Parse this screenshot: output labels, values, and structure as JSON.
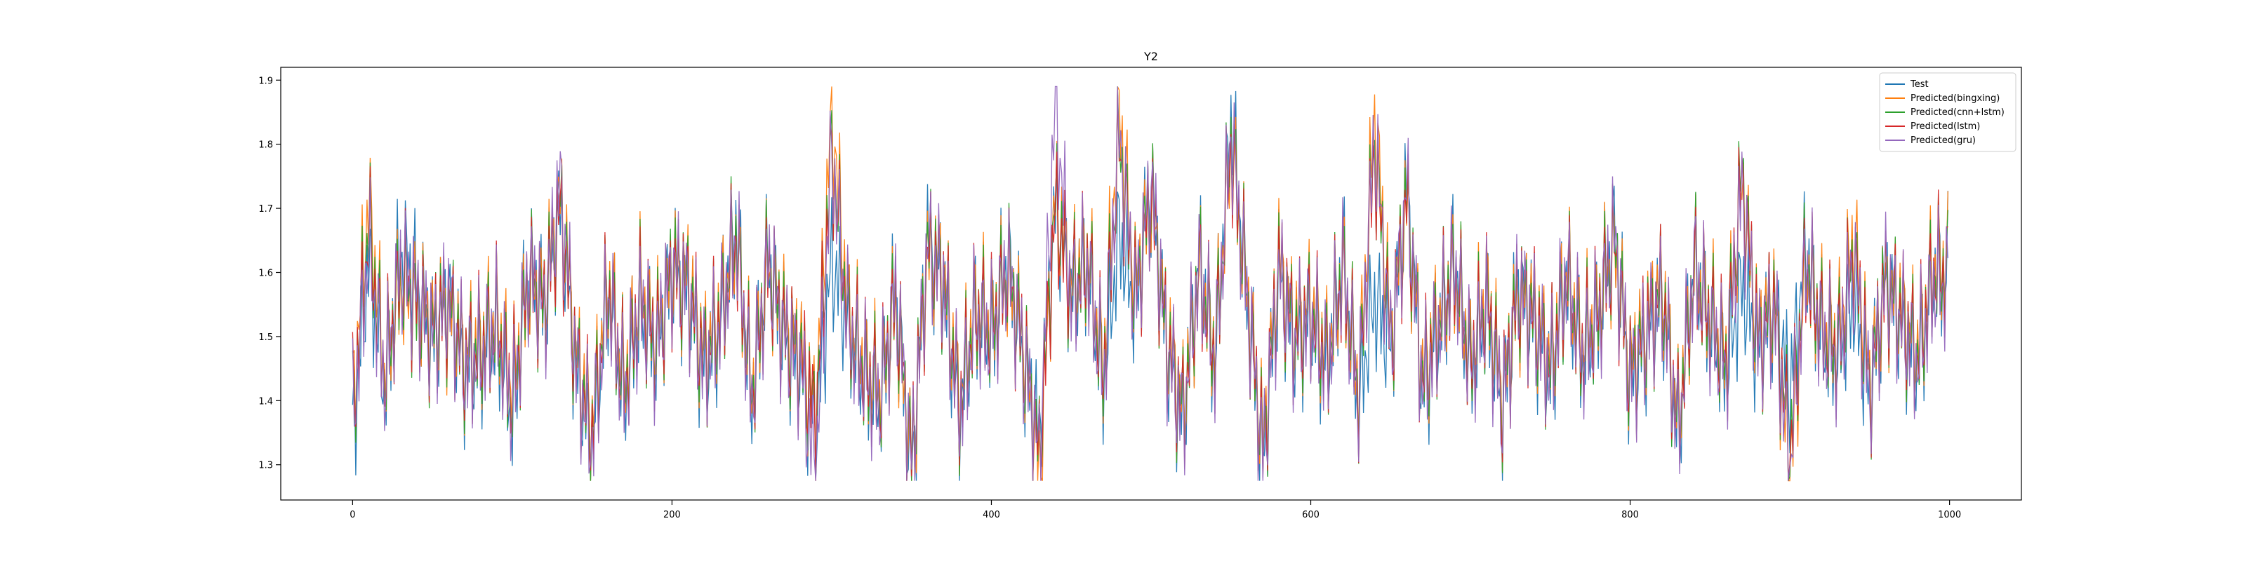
{
  "chart_data": {
    "type": "line",
    "title": "Y2",
    "xlabel": "",
    "ylabel": "",
    "xlim": [
      -45,
      1045
    ],
    "ylim": [
      1.245,
      1.92
    ],
    "x_ticks": [
      0,
      200,
      400,
      600,
      800,
      1000
    ],
    "y_ticks": [
      1.3,
      1.4,
      1.5,
      1.6,
      1.7,
      1.8,
      1.9
    ],
    "grid": false,
    "legend_position": "top-right",
    "n_points": 1000,
    "x_start": 0,
    "x_step": 1,
    "series": [
      {
        "name": "Test",
        "color": "#1f77b4",
        "values": [
          1.35,
          1.62,
          1.42,
          1.63,
          1.58,
          1.5,
          1.56,
          1.45,
          1.47,
          1.51,
          1.38,
          1.6,
          1.55,
          1.7,
          1.45,
          1.33,
          1.58,
          1.41,
          1.55,
          1.48,
          1.6,
          1.57,
          1.45,
          1.52,
          1.67,
          1.4,
          1.62,
          1.5,
          1.46,
          1.36,
          1.62,
          1.52,
          1.44,
          1.4,
          1.57,
          1.28,
          1.65,
          1.58,
          1.38,
          1.54,
          1.5,
          1.62,
          1.47,
          1.34,
          1.7,
          1.57,
          1.62,
          1.43,
          1.66,
          1.55,
          1.73,
          1.48,
          1.37,
          1.62,
          1.46,
          1.84,
          1.57,
          1.31,
          1.6,
          1.49,
          1.53,
          1.45,
          1.62,
          1.4,
          1.56,
          1.48,
          1.73,
          1.42,
          1.51,
          1.62,
          1.45,
          1.55,
          1.39,
          1.58,
          1.52,
          1.44,
          1.59,
          1.47,
          1.53,
          1.66,
          1.43,
          1.5,
          1.57,
          1.35,
          1.61,
          1.52,
          1.45,
          1.58,
          1.48,
          1.55,
          1.42,
          1.63,
          1.5,
          1.47,
          1.56,
          1.41,
          1.59,
          1.52,
          1.46,
          1.6
        ],
        "x_start": 0,
        "x_step": 10
      },
      {
        "name": "Predicted(bingxing)",
        "color": "#ff7f0e",
        "values": [
          1.4,
          1.71,
          1.45,
          1.58,
          1.55,
          1.52,
          1.54,
          1.47,
          1.49,
          1.53,
          1.42,
          1.58,
          1.56,
          1.72,
          1.47,
          1.36,
          1.59,
          1.43,
          1.57,
          1.5,
          1.6,
          1.59,
          1.47,
          1.54,
          1.65,
          1.42,
          1.61,
          1.52,
          1.48,
          1.38,
          1.86,
          1.54,
          1.46,
          1.42,
          1.55,
          1.3,
          1.63,
          1.6,
          1.4,
          1.55,
          1.52,
          1.6,
          1.49,
          1.28,
          1.72,
          1.58,
          1.63,
          1.45,
          1.86,
          1.57,
          1.72,
          1.5,
          1.39,
          1.6,
          1.48,
          1.8,
          1.58,
          1.33,
          1.62,
          1.51,
          1.55,
          1.47,
          1.6,
          1.42,
          1.85,
          1.5,
          1.71,
          1.44,
          1.53,
          1.6,
          1.47,
          1.57,
          1.41,
          1.56,
          1.54,
          1.46,
          1.6,
          1.49,
          1.55,
          1.64,
          1.45,
          1.52,
          1.58,
          1.37,
          1.6,
          1.54,
          1.47,
          1.74,
          1.5,
          1.56,
          1.28,
          1.61,
          1.52,
          1.49,
          1.66,
          1.43,
          1.58,
          1.54,
          1.48,
          1.61
        ],
        "x_start": 0,
        "x_step": 10
      },
      {
        "name": "Predicted(cnn+lstm)",
        "color": "#2ca02c",
        "values": [
          1.38,
          1.68,
          1.44,
          1.59,
          1.54,
          1.51,
          1.55,
          1.46,
          1.48,
          1.52,
          1.4,
          1.59,
          1.55,
          1.71,
          1.46,
          1.35,
          1.58,
          1.42,
          1.56,
          1.49,
          1.61,
          1.58,
          1.46,
          1.53,
          1.66,
          1.41,
          1.62,
          1.51,
          1.47,
          1.37,
          1.79,
          1.53,
          1.45,
          1.41,
          1.56,
          1.31,
          1.64,
          1.59,
          1.39,
          1.54,
          1.51,
          1.61,
          1.48,
          1.32,
          1.71,
          1.57,
          1.62,
          1.44,
          1.81,
          1.56,
          1.73,
          1.49,
          1.38,
          1.61,
          1.47,
          1.81,
          1.57,
          1.32,
          1.61,
          1.5,
          1.54,
          1.46,
          1.61,
          1.41,
          1.8,
          1.49,
          1.72,
          1.43,
          1.52,
          1.61,
          1.46,
          1.56,
          1.4,
          1.57,
          1.53,
          1.45,
          1.59,
          1.48,
          1.54,
          1.65,
          1.44,
          1.51,
          1.57,
          1.36,
          1.61,
          1.53,
          1.46,
          1.76,
          1.49,
          1.55,
          1.33,
          1.62,
          1.51,
          1.48,
          1.63,
          1.42,
          1.59,
          1.53,
          1.47,
          1.6
        ],
        "x_start": 0,
        "x_step": 10
      },
      {
        "name": "Predicted(lstm)",
        "color": "#d62728",
        "values": [
          1.39,
          1.66,
          1.44,
          1.6,
          1.55,
          1.51,
          1.55,
          1.46,
          1.48,
          1.52,
          1.41,
          1.59,
          1.55,
          1.7,
          1.46,
          1.35,
          1.58,
          1.42,
          1.56,
          1.49,
          1.6,
          1.58,
          1.46,
          1.53,
          1.65,
          1.41,
          1.61,
          1.51,
          1.47,
          1.37,
          1.78,
          1.53,
          1.45,
          1.41,
          1.56,
          1.31,
          1.63,
          1.59,
          1.39,
          1.54,
          1.51,
          1.6,
          1.48,
          1.31,
          1.7,
          1.57,
          1.62,
          1.44,
          1.8,
          1.56,
          1.72,
          1.49,
          1.38,
          1.6,
          1.47,
          1.8,
          1.57,
          1.32,
          1.61,
          1.5,
          1.54,
          1.46,
          1.6,
          1.41,
          1.79,
          1.49,
          1.71,
          1.43,
          1.52,
          1.6,
          1.46,
          1.56,
          1.4,
          1.57,
          1.53,
          1.45,
          1.59,
          1.48,
          1.54,
          1.64,
          1.44,
          1.51,
          1.57,
          1.36,
          1.6,
          1.53,
          1.46,
          1.75,
          1.49,
          1.55,
          1.32,
          1.61,
          1.51,
          1.48,
          1.63,
          1.42,
          1.58,
          1.53,
          1.47,
          1.6
        ],
        "x_start": 0,
        "x_step": 10
      },
      {
        "name": "Predicted(gru)",
        "color": "#9467bd",
        "values": [
          1.37,
          1.64,
          1.43,
          1.61,
          1.56,
          1.5,
          1.56,
          1.45,
          1.47,
          1.52,
          1.39,
          1.6,
          1.54,
          1.74,
          1.45,
          1.33,
          1.57,
          1.41,
          1.55,
          1.48,
          1.61,
          1.57,
          1.45,
          1.52,
          1.66,
          1.4,
          1.62,
          1.5,
          1.46,
          1.28,
          1.79,
          1.52,
          1.44,
          1.4,
          1.57,
          1.3,
          1.64,
          1.58,
          1.38,
          1.53,
          1.5,
          1.61,
          1.47,
          1.31,
          1.87,
          1.56,
          1.61,
          1.43,
          1.82,
          1.55,
          1.74,
          1.48,
          1.37,
          1.61,
          1.46,
          1.82,
          1.56,
          1.31,
          1.6,
          1.49,
          1.53,
          1.45,
          1.61,
          1.4,
          1.82,
          1.48,
          1.73,
          1.42,
          1.51,
          1.61,
          1.45,
          1.55,
          1.39,
          1.58,
          1.52,
          1.44,
          1.6,
          1.47,
          1.53,
          1.66,
          1.43,
          1.5,
          1.56,
          1.35,
          1.61,
          1.52,
          1.45,
          1.73,
          1.48,
          1.54,
          1.29,
          1.62,
          1.5,
          1.47,
          1.62,
          1.41,
          1.59,
          1.52,
          1.46,
          1.58
        ],
        "x_start": 0,
        "x_step": 10
      }
    ]
  }
}
